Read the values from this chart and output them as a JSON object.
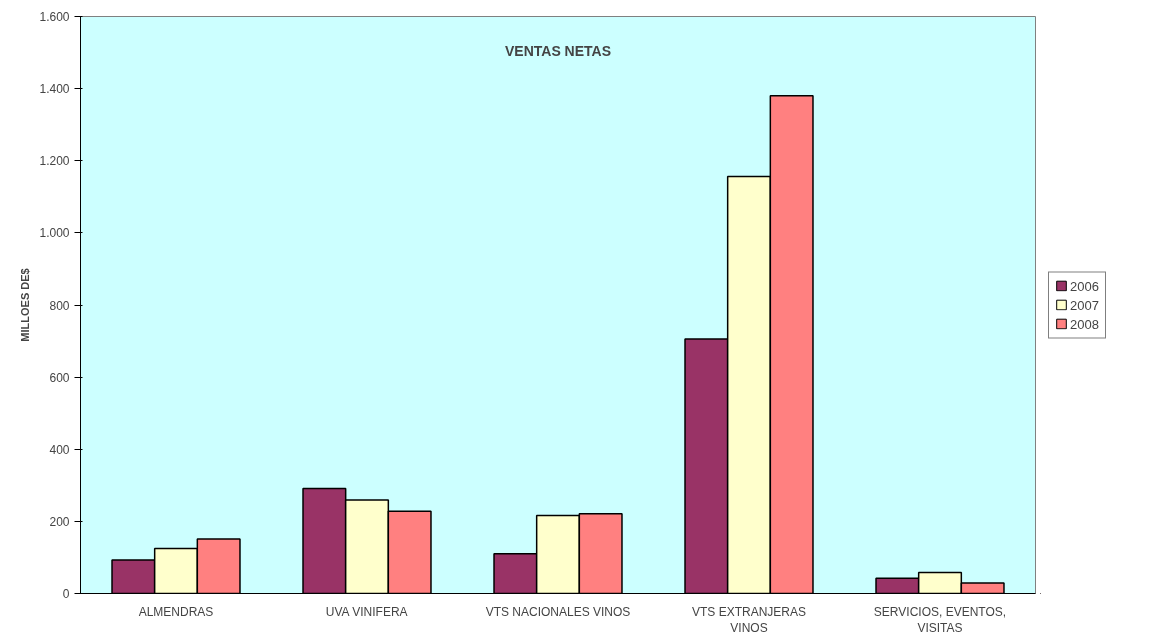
{
  "chart_data": {
    "type": "bar",
    "title": "VENTAS NETAS",
    "ylabel": "MILLOES DE$",
    "categories": [
      "ALMENDRAS",
      "UVA VINIFERA",
      "VTS NACIONALES VINOS",
      "VTS EXTRANJERAS VINOS",
      "SERVICIOS, EVENTOS, VISITAS"
    ],
    "series": [
      {
        "name": "2006",
        "color": "#993366",
        "values": [
          93,
          291,
          110,
          706,
          42
        ]
      },
      {
        "name": "2007",
        "color": "#ffffcc",
        "values": [
          125,
          259,
          216,
          1156,
          58
        ]
      },
      {
        "name": "2008",
        "color": "#ff8080",
        "values": [
          151,
          228,
          221,
          1380,
          29
        ]
      }
    ],
    "ylim": [
      0,
      1600
    ],
    "yticks": [
      0,
      200,
      400,
      600,
      800,
      {
        "value": 1000,
        "label": "1.000"
      },
      {
        "value": 1200,
        "label": "1.200"
      },
      {
        "value": 1400,
        "label": "1.400"
      },
      {
        "value": 1600,
        "label": "1.600"
      }
    ],
    "grid": false,
    "legend": "right"
  }
}
